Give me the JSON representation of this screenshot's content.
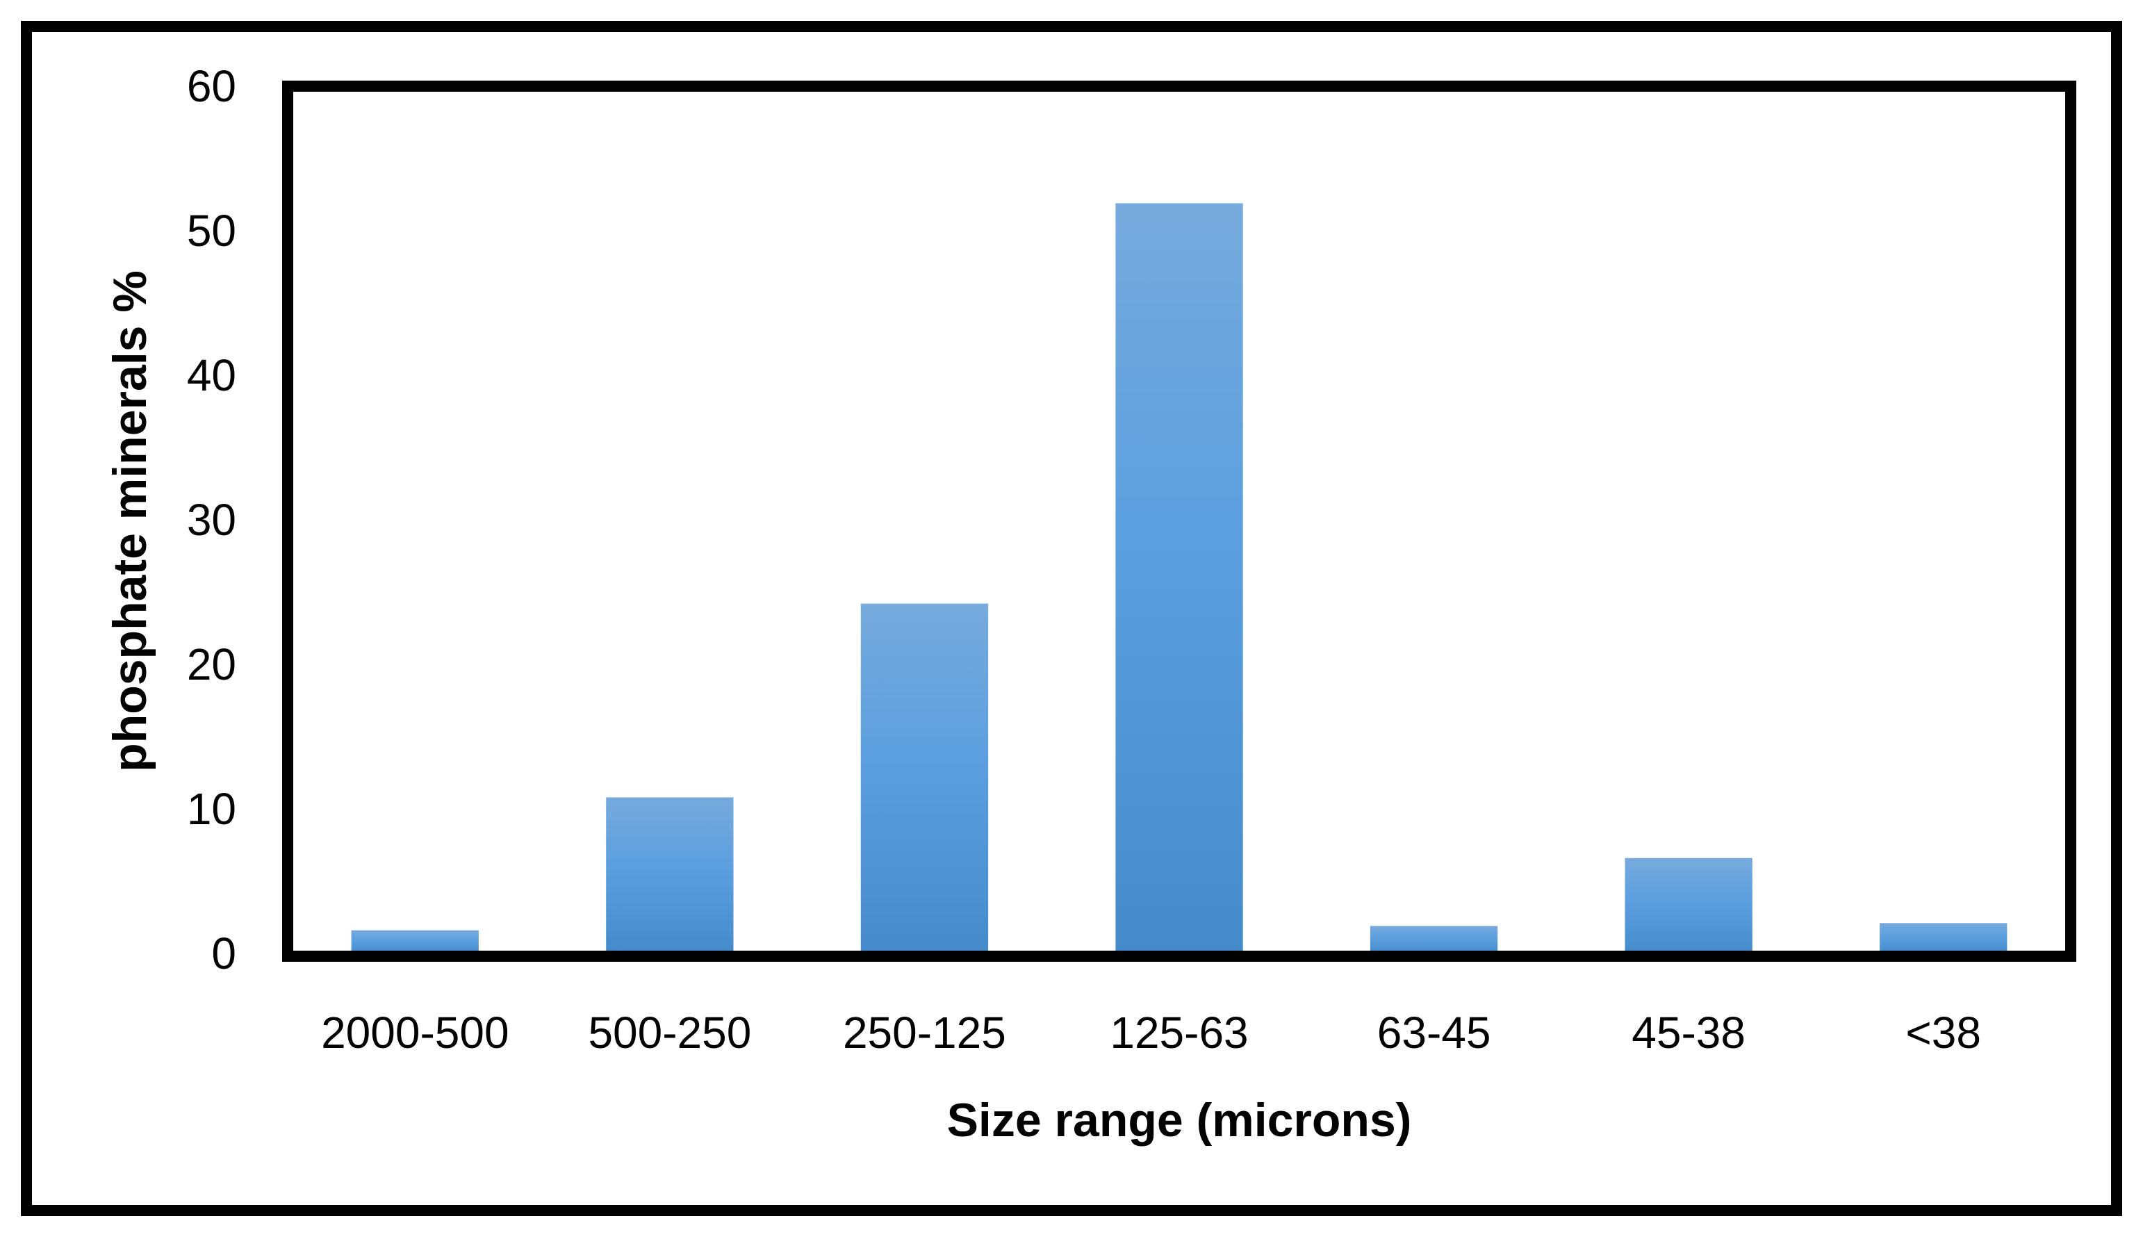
{
  "chart_data": {
    "type": "bar",
    "title": "",
    "xlabel": "Size range (microns)",
    "ylabel": "phosphate minerals %",
    "categories": [
      "2000-500",
      "500-250",
      "250-125",
      "125-63",
      "63-45",
      "45-38",
      "<38"
    ],
    "values": [
      1.6,
      10.8,
      24.2,
      51.9,
      1.9,
      6.6,
      2.1
    ],
    "ylim": [
      0,
      60
    ],
    "yticks": [
      "0",
      "10",
      "20",
      "30",
      "40",
      "50",
      "60"
    ],
    "grid": false,
    "legend": "none",
    "colors": {
      "bar_top": "#77aadd",
      "bar_mid": "#5b9fdf",
      "bar_bottom": "#458bcb",
      "frame": "#000000"
    }
  }
}
